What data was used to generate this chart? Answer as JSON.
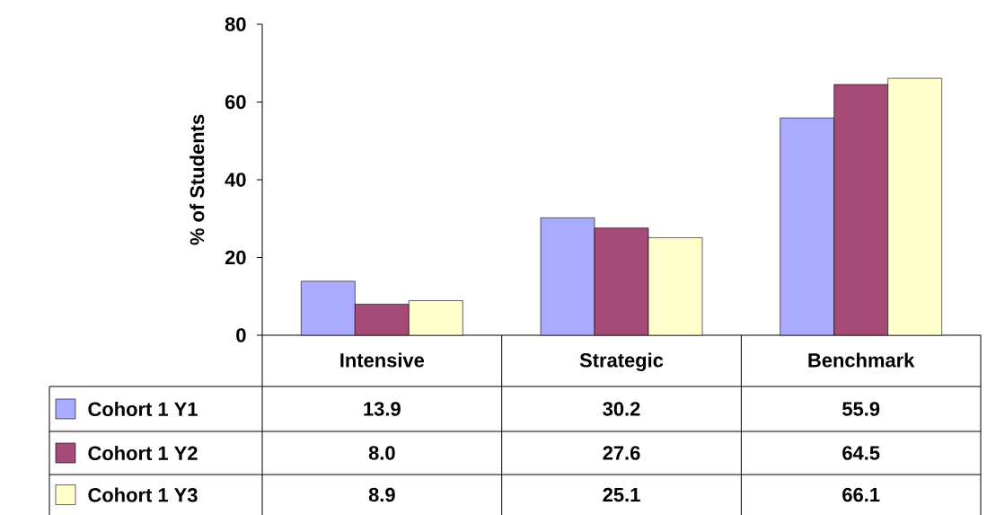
{
  "chart_data": {
    "type": "bar",
    "ylabel": "% of Students",
    "categories": [
      "Intensive",
      "Strategic",
      "Benchmark"
    ],
    "series": [
      {
        "name": "Cohort 1 Y1",
        "color": "#aaaaff",
        "values": [
          13.9,
          30.2,
          55.9
        ],
        "value_labels": [
          "13.9",
          "30.2",
          "55.9"
        ]
      },
      {
        "name": "Cohort 1 Y2",
        "color": "#a64a77",
        "values": [
          8.0,
          27.6,
          64.5
        ],
        "value_labels": [
          "8.0",
          "27.6",
          "64.5"
        ]
      },
      {
        "name": "Cohort 1 Y3",
        "color": "#ffffcc",
        "values": [
          8.9,
          25.1,
          66.1
        ],
        "value_labels": [
          "8.9",
          "25.1",
          "66.1"
        ]
      }
    ],
    "ylim": [
      0,
      80
    ],
    "yticks": [
      0,
      20,
      40,
      60,
      80
    ],
    "legend": "bottom",
    "grid": false
  }
}
